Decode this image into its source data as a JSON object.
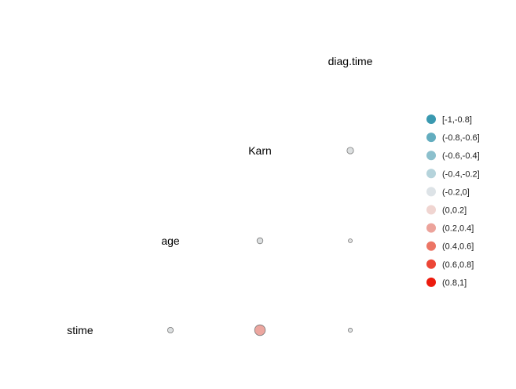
{
  "chart_data": {
    "type": "correlation-matrix",
    "variables": [
      "stime",
      "age",
      "Karn",
      "diag.time"
    ],
    "cells": [
      {
        "row": "Karn",
        "col": "diag.time",
        "value": -0.12,
        "color": "#dcdfe0"
      },
      {
        "row": "age",
        "col": "Karn",
        "value": -0.1,
        "color": "#dcdfe0"
      },
      {
        "row": "age",
        "col": "diag.time",
        "value": -0.03,
        "color": "#e0e0e0"
      },
      {
        "row": "stime",
        "col": "age",
        "value": -0.09,
        "color": "#dcdfe0"
      },
      {
        "row": "stime",
        "col": "Karn",
        "value": 0.32,
        "color": "#eca69f"
      },
      {
        "row": "stime",
        "col": "diag.time",
        "value": -0.05,
        "color": "#dfe2e3"
      }
    ],
    "legend": {
      "placement": "right",
      "items": [
        {
          "label": "[-1,-0.8]",
          "color": "#3a99b0"
        },
        {
          "label": "(-0.8,-0.6]",
          "color": "#63adbf"
        },
        {
          "label": "(-0.6,-0.4]",
          "color": "#8cc0cd"
        },
        {
          "label": "(-0.4,-0.2]",
          "color": "#b5d3db"
        },
        {
          "label": "(-0.2,0]",
          "color": "#dde3e7"
        },
        {
          "label": "(0,0.2]",
          "color": "#f0d5d1"
        },
        {
          "label": "(0.2,0.4]",
          "color": "#eca39b"
        },
        {
          "label": "(0.4,0.6]",
          "color": "#ec7565"
        },
        {
          "label": "(0.6,0.8]",
          "color": "#ec4636"
        },
        {
          "label": "(0.8,1]",
          "color": "#ec1b0e"
        }
      ]
    }
  }
}
